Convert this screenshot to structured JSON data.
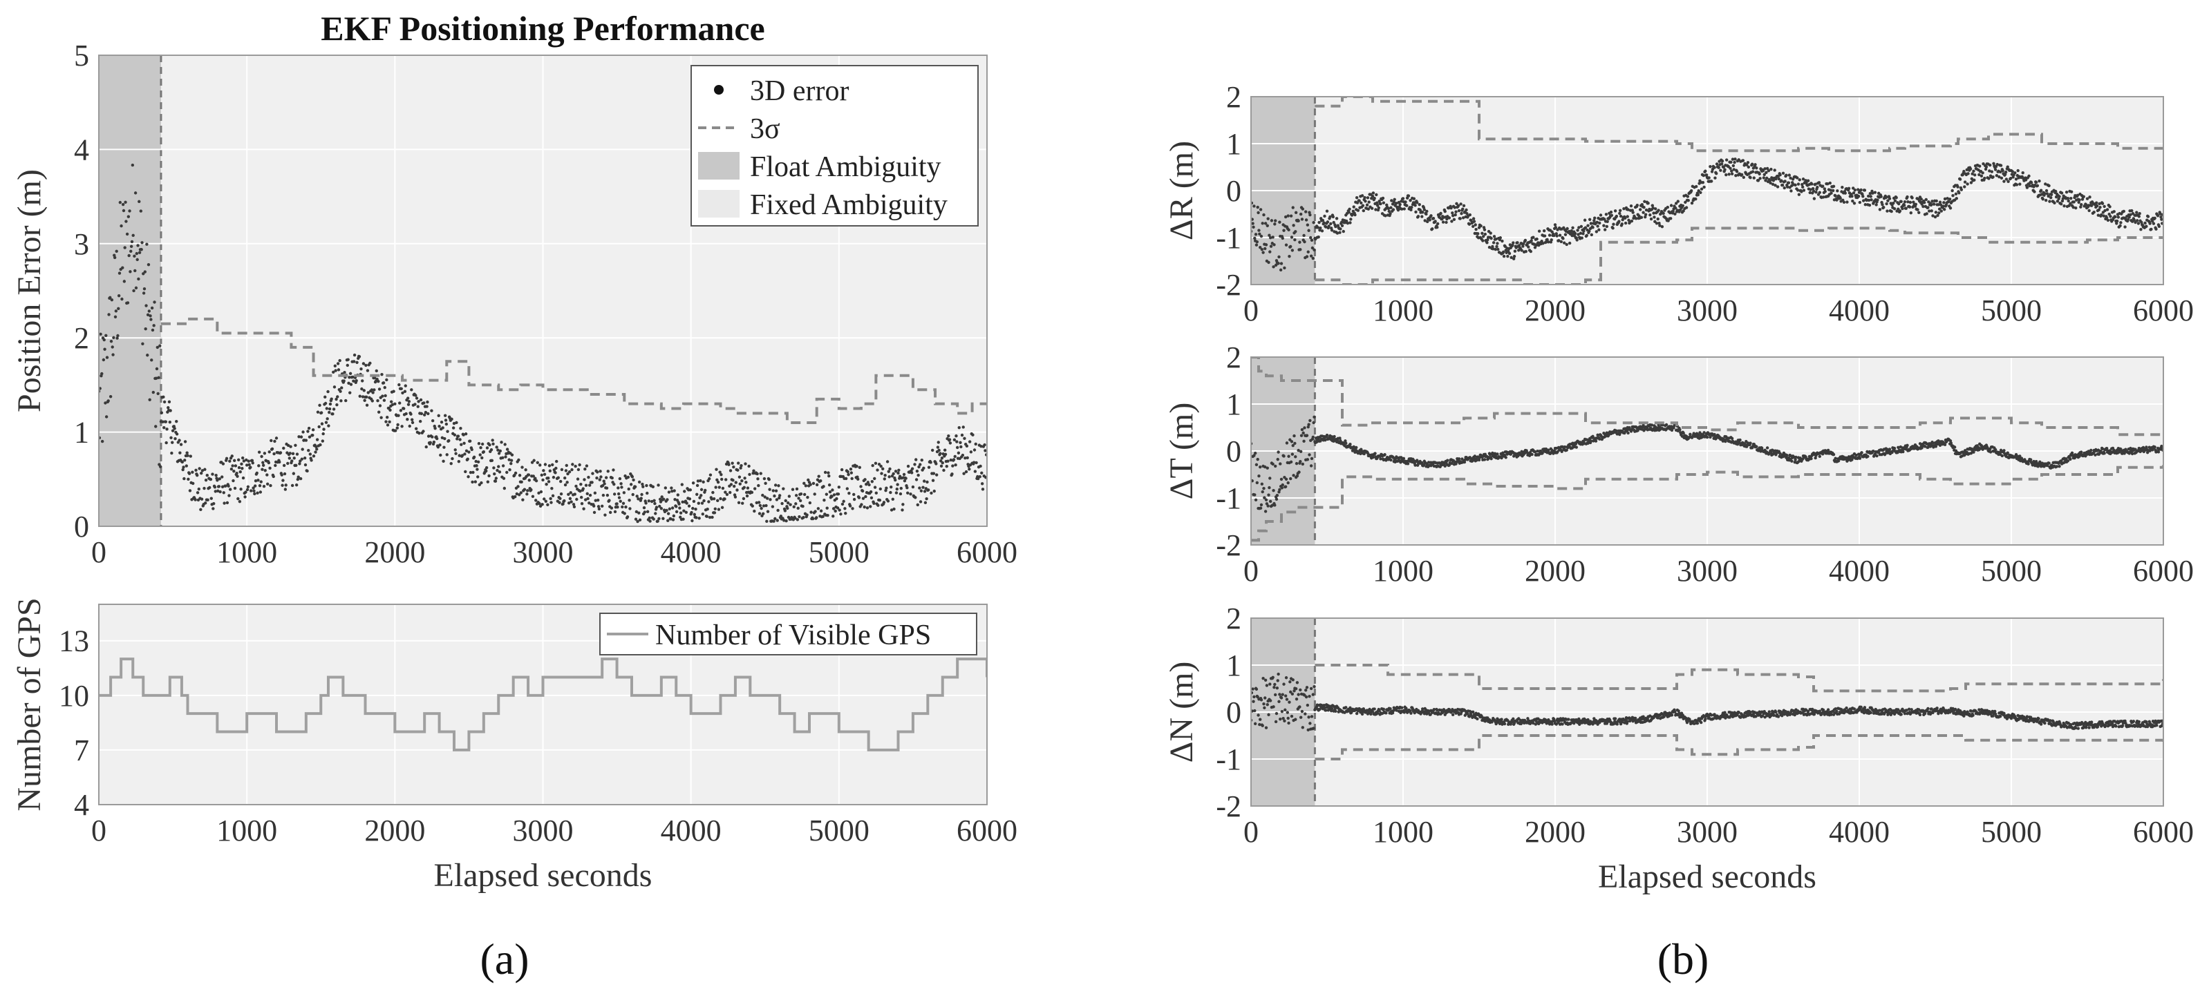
{
  "colors": {
    "plot_bg": "#f0f0f0",
    "float_shade": "#c8c8c8",
    "error_dots": "#3a3a3a",
    "sigma_line": "#8a8a8a",
    "gps_line": "#a0a0a0"
  },
  "panel_labels": {
    "a": "(a)",
    "b": "(b)"
  },
  "chart_data": [
    {
      "id": "position-error",
      "type": "scatter",
      "title": "EKF Positioning Performance",
      "xlabel": "",
      "ylabel": "Position Error (m)",
      "xlim": [
        0,
        6000
      ],
      "ylim": [
        0,
        5
      ],
      "xticks": [
        0,
        1000,
        2000,
        3000,
        4000,
        5000,
        6000
      ],
      "yticks": [
        0,
        1,
        2,
        3,
        4,
        5
      ],
      "float_ambiguity_end": 420,
      "legend": [
        "3D error",
        "3σ",
        "Float Ambiguity",
        "Fixed Ambiguity"
      ],
      "legend_position": "top-right",
      "series": [
        {
          "name": "3D error",
          "x": [
            0,
            50,
            100,
            150,
            200,
            250,
            300,
            350,
            400,
            500,
            600,
            700,
            800,
            900,
            1000,
            1100,
            1200,
            1300,
            1400,
            1500,
            1600,
            1700,
            1800,
            1900,
            2000,
            2100,
            2200,
            2300,
            2400,
            2500,
            2600,
            2700,
            2800,
            2900,
            3000,
            3100,
            3200,
            3300,
            3400,
            3500,
            3600,
            3700,
            3800,
            3900,
            4000,
            4100,
            4200,
            4300,
            4400,
            4500,
            4600,
            4700,
            4800,
            4900,
            5000,
            5100,
            5200,
            5300,
            5400,
            5500,
            5600,
            5700,
            5800,
            5900,
            6000
          ],
          "y": [
            1.2,
            1.6,
            2.2,
            2.8,
            3.0,
            3.3,
            2.6,
            2.0,
            1.3,
            1.0,
            0.6,
            0.35,
            0.45,
            0.5,
            0.5,
            0.6,
            0.7,
            0.6,
            0.8,
            1.1,
            1.5,
            1.6,
            1.55,
            1.4,
            1.25,
            1.3,
            1.1,
            0.95,
            0.9,
            0.7,
            0.65,
            0.7,
            0.55,
            0.5,
            0.45,
            0.5,
            0.45,
            0.4,
            0.35,
            0.4,
            0.3,
            0.2,
            0.2,
            0.2,
            0.25,
            0.3,
            0.4,
            0.5,
            0.4,
            0.3,
            0.2,
            0.15,
            0.3,
            0.35,
            0.35,
            0.4,
            0.4,
            0.45,
            0.4,
            0.45,
            0.5,
            0.7,
            0.85,
            0.75,
            0.6
          ]
        },
        {
          "name": "3σ",
          "x": [
            420,
            600,
            800,
            1050,
            1300,
            1400,
            1450,
            1600,
            1850,
            2050,
            2300,
            2350,
            2500,
            2700,
            2800,
            2850,
            3000,
            3300,
            3500,
            3550,
            3750,
            3800,
            3950,
            4200,
            4300,
            4450,
            4650,
            4850,
            5000,
            5150,
            5250,
            5400,
            5500,
            5650,
            5800,
            5900,
            6000
          ],
          "y": [
            2.15,
            2.2,
            2.05,
            2.05,
            1.9,
            1.9,
            1.6,
            1.6,
            1.6,
            1.55,
            1.55,
            1.75,
            1.5,
            1.45,
            1.45,
            1.5,
            1.45,
            1.4,
            1.4,
            1.3,
            1.3,
            1.25,
            1.3,
            1.25,
            1.2,
            1.2,
            1.1,
            1.35,
            1.25,
            1.3,
            1.6,
            1.6,
            1.45,
            1.3,
            1.2,
            1.3,
            1.3
          ]
        }
      ]
    },
    {
      "id": "visible-gps",
      "type": "line",
      "title": "",
      "xlabel": "Elapsed seconds",
      "ylabel": "Number of GPS",
      "xlim": [
        0,
        6000
      ],
      "ylim": [
        4,
        15
      ],
      "xticks": [
        0,
        1000,
        2000,
        3000,
        4000,
        5000,
        6000
      ],
      "yticks": [
        4,
        7,
        10,
        13
      ],
      "legend": [
        "Number of Visible GPS"
      ],
      "legend_position": "top-right",
      "series": [
        {
          "name": "Number of Visible GPS",
          "x": [
            0,
            80,
            150,
            230,
            300,
            480,
            560,
            600,
            800,
            1000,
            1200,
            1400,
            1500,
            1550,
            1650,
            1800,
            2000,
            2200,
            2300,
            2400,
            2500,
            2600,
            2700,
            2800,
            2900,
            3000,
            3200,
            3400,
            3500,
            3600,
            3800,
            3900,
            4000,
            4200,
            4300,
            4400,
            4600,
            4700,
            4800,
            5000,
            5200,
            5400,
            5500,
            5600,
            5700,
            5800,
            6000
          ],
          "y": [
            10,
            11,
            12,
            11,
            10,
            11,
            10,
            9,
            8,
            9,
            8,
            9,
            10,
            11,
            10,
            9,
            8,
            9,
            8,
            7,
            8,
            9,
            10,
            11,
            10,
            11,
            11,
            12,
            11,
            10,
            11,
            10,
            9,
            10,
            11,
            10,
            9,
            8,
            9,
            8,
            7,
            8,
            9,
            10,
            11,
            12,
            11
          ]
        }
      ]
    },
    {
      "id": "delta-r",
      "type": "scatter",
      "title": "",
      "xlabel": "",
      "ylabel": "ΔR (m)",
      "xlim": [
        0,
        6000
      ],
      "ylim": [
        -2,
        2
      ],
      "xticks": [
        0,
        1000,
        2000,
        3000,
        4000,
        5000,
        6000
      ],
      "yticks": [
        -2,
        -1,
        0,
        1,
        2
      ],
      "float_ambiguity_end": 420,
      "series": [
        {
          "name": "ΔR error",
          "x": [
            0,
            100,
            200,
            300,
            400,
            500,
            600,
            700,
            800,
            900,
            1000,
            1100,
            1200,
            1300,
            1400,
            1500,
            1600,
            1700,
            1800,
            1900,
            2000,
            2100,
            2200,
            2300,
            2400,
            2500,
            2600,
            2700,
            2800,
            2900,
            3000,
            3100,
            3200,
            3300,
            3400,
            3500,
            3600,
            3700,
            3800,
            3900,
            4000,
            4100,
            4200,
            4300,
            4400,
            4500,
            4600,
            4700,
            4800,
            4900,
            5000,
            5100,
            5200,
            5300,
            5400,
            5500,
            5600,
            5700,
            5800,
            5900,
            6000
          ],
          "y": [
            -0.5,
            -1.0,
            -1.2,
            -0.8,
            -1.0,
            -0.6,
            -0.8,
            -0.3,
            -0.2,
            -0.4,
            -0.2,
            -0.4,
            -0.7,
            -0.5,
            -0.4,
            -0.9,
            -1.1,
            -1.3,
            -1.2,
            -1.0,
            -0.9,
            -1.0,
            -0.8,
            -0.7,
            -0.6,
            -0.5,
            -0.4,
            -0.6,
            -0.4,
            -0.1,
            0.3,
            0.5,
            0.5,
            0.4,
            0.3,
            0.2,
            0.1,
            0.0,
            0.0,
            -0.1,
            -0.1,
            -0.2,
            -0.3,
            -0.3,
            -0.3,
            -0.4,
            -0.2,
            0.3,
            0.4,
            0.4,
            0.3,
            0.2,
            0.0,
            -0.1,
            -0.2,
            -0.3,
            -0.4,
            -0.6,
            -0.6,
            -0.7,
            -0.6
          ]
        },
        {
          "name": "+3σ",
          "x": [
            420,
            600,
            800,
            1000,
            1200,
            1400,
            1500,
            1800,
            2200,
            2300,
            2800,
            2900,
            3200,
            3600,
            3800,
            4200,
            4300,
            4600,
            4650,
            4850,
            5200,
            5500,
            5700,
            6000
          ],
          "y": [
            1.8,
            2.0,
            1.9,
            1.9,
            1.9,
            1.9,
            1.1,
            1.1,
            1.05,
            1.05,
            1.0,
            0.85,
            0.85,
            0.9,
            0.85,
            0.9,
            0.95,
            1.0,
            1.1,
            1.2,
            1.0,
            1.0,
            0.9,
            0.9
          ]
        },
        {
          "name": "-3σ",
          "x": [
            420,
            600,
            800,
            1000,
            1200,
            1400,
            1500,
            1800,
            2200,
            2300,
            2800,
            2900,
            3200,
            3600,
            3800,
            4200,
            4300,
            4600,
            4650,
            4850,
            5200,
            5500,
            5700,
            6000
          ],
          "y": [
            -1.9,
            -2.0,
            -1.9,
            -1.9,
            -1.9,
            -1.9,
            -1.9,
            -2.0,
            -1.9,
            -1.1,
            -1.05,
            -0.8,
            -0.8,
            -0.85,
            -0.8,
            -0.85,
            -0.9,
            -0.9,
            -1.0,
            -1.1,
            -1.1,
            -1.05,
            -1.0,
            -1.0
          ]
        }
      ]
    },
    {
      "id": "delta-t",
      "type": "line",
      "title": "",
      "xlabel": "",
      "ylabel": "ΔT (m)",
      "xlim": [
        0,
        6000
      ],
      "ylim": [
        -2,
        2
      ],
      "xticks": [
        0,
        1000,
        2000,
        3000,
        4000,
        5000,
        6000
      ],
      "yticks": [
        -2,
        -1,
        0,
        1,
        2
      ],
      "float_ambiguity_end": 420,
      "series": [
        {
          "name": "ΔT error",
          "x": [
            0,
            50,
            100,
            200,
            300,
            400,
            500,
            600,
            700,
            800,
            1000,
            1200,
            1400,
            1600,
            1800,
            2000,
            2200,
            2400,
            2600,
            2800,
            2850,
            3000,
            3200,
            3400,
            3600,
            3800,
            3850,
            4000,
            4200,
            4400,
            4600,
            4650,
            4800,
            5000,
            5200,
            5300,
            5400,
            5600,
            5800,
            6000
          ],
          "y": [
            -0.3,
            -0.7,
            -0.8,
            -0.5,
            -0.1,
            0.2,
            0.3,
            0.2,
            0.0,
            -0.1,
            -0.2,
            -0.3,
            -0.2,
            -0.1,
            -0.05,
            0.0,
            0.2,
            0.4,
            0.5,
            0.5,
            0.3,
            0.35,
            0.2,
            0.0,
            -0.2,
            0.0,
            -0.2,
            -0.1,
            0.0,
            0.1,
            0.2,
            -0.1,
            0.1,
            -0.1,
            -0.3,
            -0.3,
            -0.1,
            0.0,
            0.0,
            0.05
          ]
        },
        {
          "name": "+3σ",
          "x": [
            0,
            50,
            100,
            200,
            300,
            420,
            600,
            800,
            1000,
            1400,
            1600,
            2000,
            2200,
            2400,
            2800,
            3000,
            3200,
            3600,
            3800,
            4400,
            4600,
            4800,
            5000,
            5200,
            5400,
            5700,
            6000
          ],
          "y": [
            2.0,
            1.7,
            1.6,
            1.5,
            1.5,
            1.5,
            0.55,
            0.6,
            0.6,
            0.7,
            0.8,
            0.8,
            0.6,
            0.6,
            0.5,
            0.45,
            0.6,
            0.5,
            0.5,
            0.6,
            0.7,
            0.7,
            0.6,
            0.5,
            0.5,
            0.35,
            0.3
          ]
        },
        {
          "name": "-3σ",
          "x": [
            0,
            50,
            100,
            200,
            300,
            420,
            600,
            800,
            1000,
            1400,
            1600,
            2000,
            2200,
            2400,
            2800,
            3000,
            3200,
            3600,
            3800,
            4400,
            4600,
            4800,
            5000,
            5200,
            5400,
            5700,
            6000
          ],
          "y": [
            -1.9,
            -1.7,
            -1.5,
            -1.3,
            -1.2,
            -1.2,
            -0.55,
            -0.6,
            -0.6,
            -0.7,
            -0.75,
            -0.8,
            -0.6,
            -0.6,
            -0.5,
            -0.45,
            -0.55,
            -0.5,
            -0.5,
            -0.6,
            -0.7,
            -0.7,
            -0.6,
            -0.5,
            -0.5,
            -0.35,
            -0.3
          ]
        }
      ]
    },
    {
      "id": "delta-n",
      "type": "line",
      "title": "",
      "xlabel": "Elapsed seconds",
      "ylabel": "ΔN (m)",
      "xlim": [
        0,
        6000
      ],
      "ylim": [
        -2,
        2
      ],
      "xticks": [
        0,
        1000,
        2000,
        3000,
        4000,
        5000,
        6000
      ],
      "yticks": [
        -2,
        -1,
        0,
        1,
        2
      ],
      "float_ambiguity_end": 420,
      "series": [
        {
          "name": "ΔN error",
          "x": [
            0,
            100,
            200,
            300,
            400,
            500,
            600,
            800,
            1000,
            1200,
            1400,
            1500,
            1600,
            1800,
            2000,
            2200,
            2400,
            2600,
            2800,
            2900,
            3000,
            3200,
            3400,
            3600,
            3800,
            4000,
            4200,
            4400,
            4600,
            4700,
            4800,
            5000,
            5200,
            5400,
            5600,
            5800,
            6000
          ],
          "y": [
            0.1,
            0.2,
            0.3,
            0.2,
            0.1,
            0.1,
            0.05,
            0.0,
            0.05,
            0.0,
            0.0,
            -0.1,
            -0.2,
            -0.2,
            -0.2,
            -0.2,
            -0.2,
            -0.15,
            0.0,
            -0.25,
            -0.1,
            -0.05,
            -0.05,
            0.0,
            0.0,
            0.05,
            0.0,
            0.0,
            0.05,
            -0.05,
            0.0,
            -0.1,
            -0.2,
            -0.3,
            -0.25,
            -0.25,
            -0.25
          ]
        },
        {
          "name": "+3σ",
          "x": [
            420,
            600,
            900,
            1400,
            1500,
            1800,
            2200,
            2800,
            2900,
            3200,
            3600,
            3700,
            4000,
            4400,
            4600,
            4700,
            5000,
            5500,
            6000
          ],
          "y": [
            1.0,
            1.0,
            0.8,
            0.8,
            0.5,
            0.5,
            0.5,
            0.8,
            0.9,
            0.8,
            0.75,
            0.45,
            0.45,
            0.45,
            0.5,
            0.6,
            0.6,
            0.6,
            0.7
          ]
        },
        {
          "name": "-3σ",
          "x": [
            420,
            600,
            900,
            1400,
            1500,
            1800,
            2200,
            2800,
            2900,
            3200,
            3600,
            3700,
            4000,
            4400,
            4600,
            4700,
            5000,
            5500,
            6000
          ],
          "y": [
            -1.0,
            -0.8,
            -0.8,
            -0.8,
            -0.5,
            -0.5,
            -0.5,
            -0.8,
            -0.9,
            -0.8,
            -0.75,
            -0.5,
            -0.5,
            -0.5,
            -0.5,
            -0.6,
            -0.6,
            -0.6,
            -0.7
          ]
        }
      ]
    }
  ]
}
